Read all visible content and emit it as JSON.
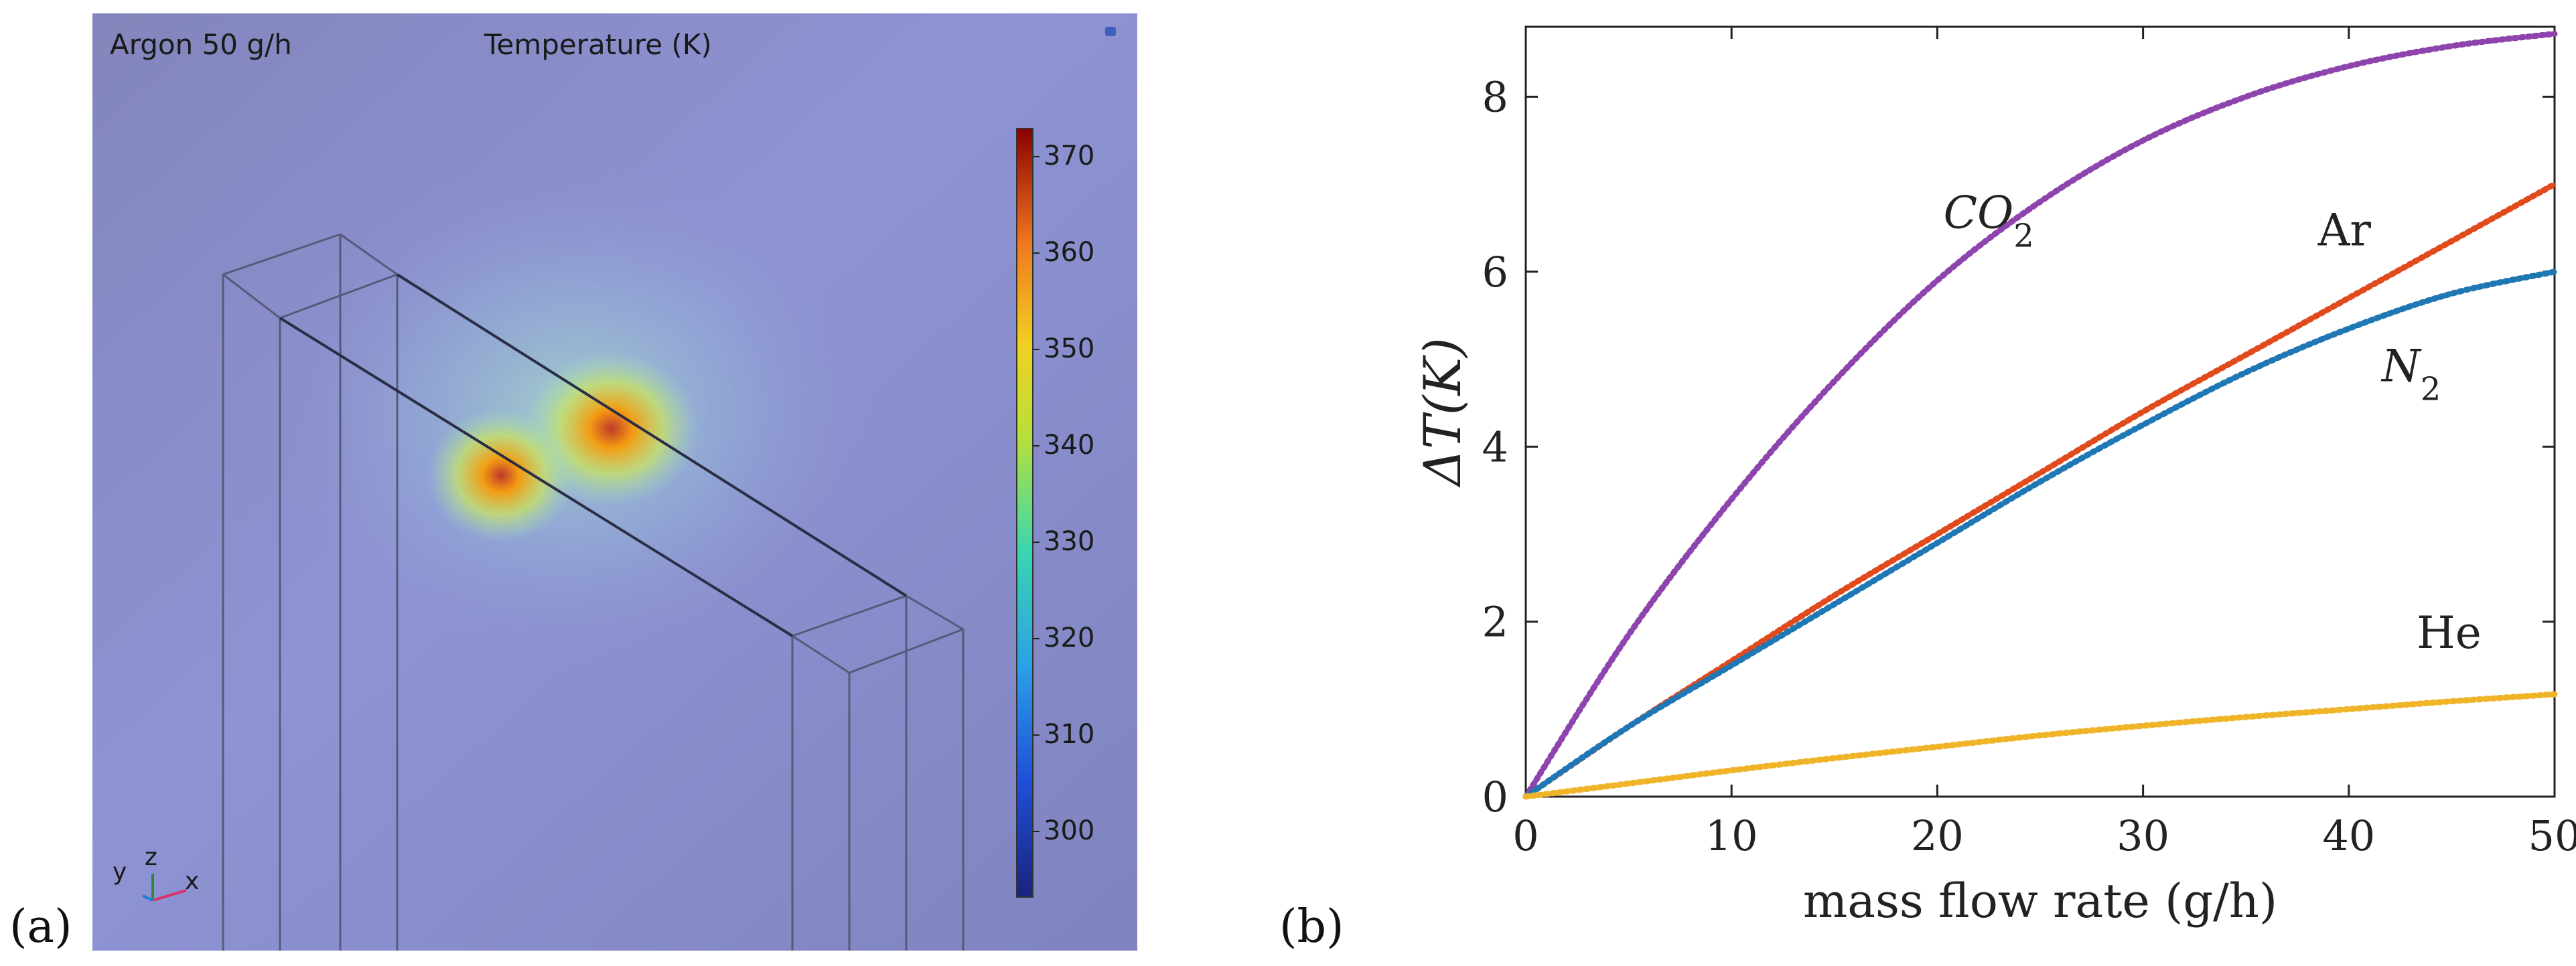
{
  "figure": {
    "label_a": "(a)",
    "label_b": "(b)"
  },
  "simulation": {
    "gas_label": "Argon 50 g/h",
    "field_title": "Temperature (K)",
    "colorbar": {
      "ticks": [
        "370",
        "360",
        "350",
        "340",
        "330",
        "320",
        "310",
        "300"
      ],
      "min": 293,
      "max": 373
    },
    "axes_triad": {
      "y": "y",
      "z": "z",
      "x": "x"
    },
    "colors": {
      "background": "#8a8fc9",
      "hot": "#c0392b"
    }
  },
  "chart_data": {
    "type": "line",
    "xlabel": "mass flow rate (g/h)",
    "ylabel": "ΔT(K)",
    "xlim": [
      0,
      50
    ],
    "ylim": [
      0,
      8.8
    ],
    "xticks": [
      "0",
      "10",
      "20",
      "30",
      "40",
      "50"
    ],
    "yticks": [
      "0",
      "2",
      "4",
      "6",
      "8"
    ],
    "x": [
      0,
      5,
      10,
      15,
      20,
      25,
      30,
      35,
      40,
      45,
      50
    ],
    "series": [
      {
        "name": "CO",
        "sub": "2",
        "color": "#8e44ad",
        "label_x": 20.3,
        "label_y": 6.5,
        "values": [
          0,
          1.85,
          3.4,
          4.75,
          5.9,
          6.8,
          7.5,
          8.0,
          8.35,
          8.58,
          8.72
        ]
      },
      {
        "name": "Ar",
        "sub": "",
        "color": "#e04a1c",
        "label_x": 38.5,
        "label_y": 6.3,
        "values": [
          0,
          0.8,
          1.55,
          2.3,
          3.0,
          3.7,
          4.4,
          5.05,
          5.7,
          6.35,
          7.0
        ]
      },
      {
        "name": "N",
        "sub": "2",
        "color": "#1f77b4",
        "label_x": 41.6,
        "label_y": 4.75,
        "values": [
          0,
          0.8,
          1.5,
          2.2,
          2.9,
          3.6,
          4.25,
          4.85,
          5.35,
          5.75,
          6.0
        ]
      },
      {
        "name": "He",
        "sub": "",
        "color": "#f0b429",
        "label_x": 43.3,
        "label_y": 1.7,
        "values": [
          0,
          0.15,
          0.3,
          0.44,
          0.57,
          0.7,
          0.81,
          0.91,
          1.0,
          1.09,
          1.17
        ]
      }
    ]
  }
}
